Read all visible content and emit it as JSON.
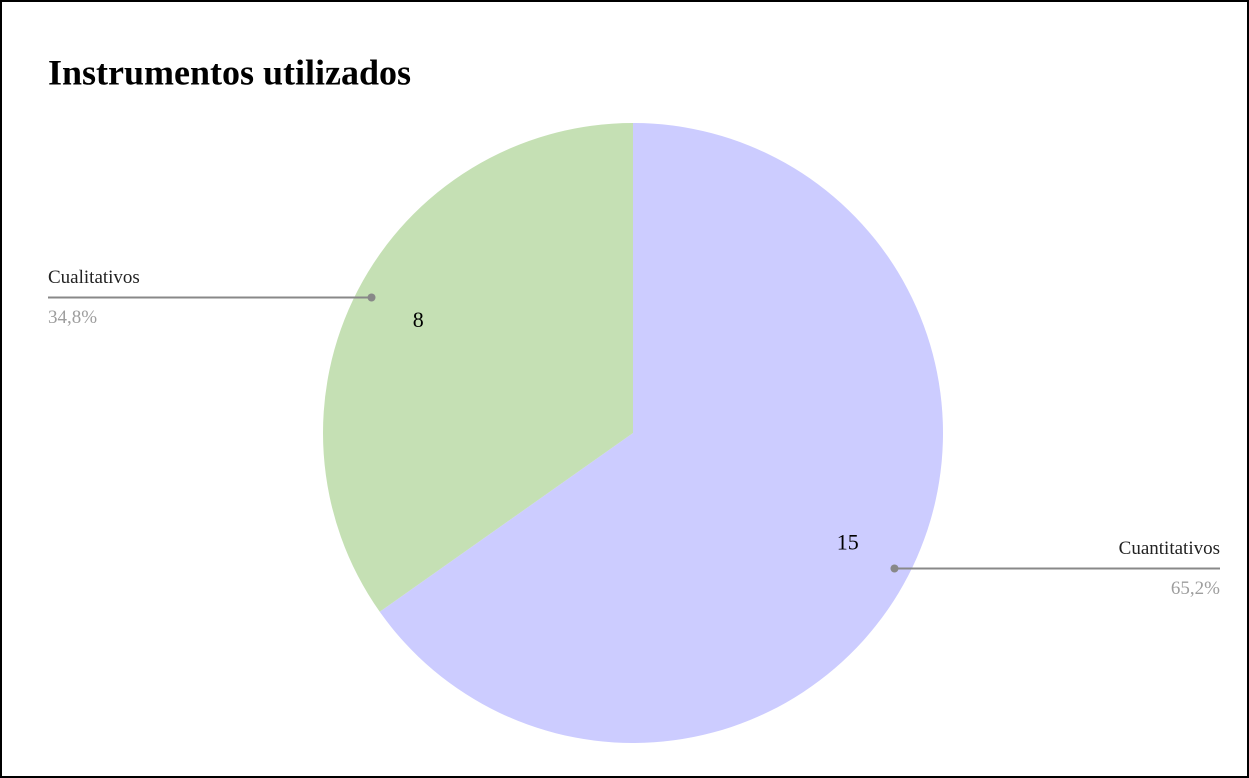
{
  "chart_data": {
    "type": "pie",
    "title": "Instrumentos utilizados",
    "categories": [
      "Cuantitativos",
      "Cualitativos"
    ],
    "values": [
      15,
      8
    ],
    "percent_labels": [
      "65,2%",
      "34,8%"
    ],
    "colors": [
      "#ccccff",
      "#c5e0b4"
    ]
  }
}
